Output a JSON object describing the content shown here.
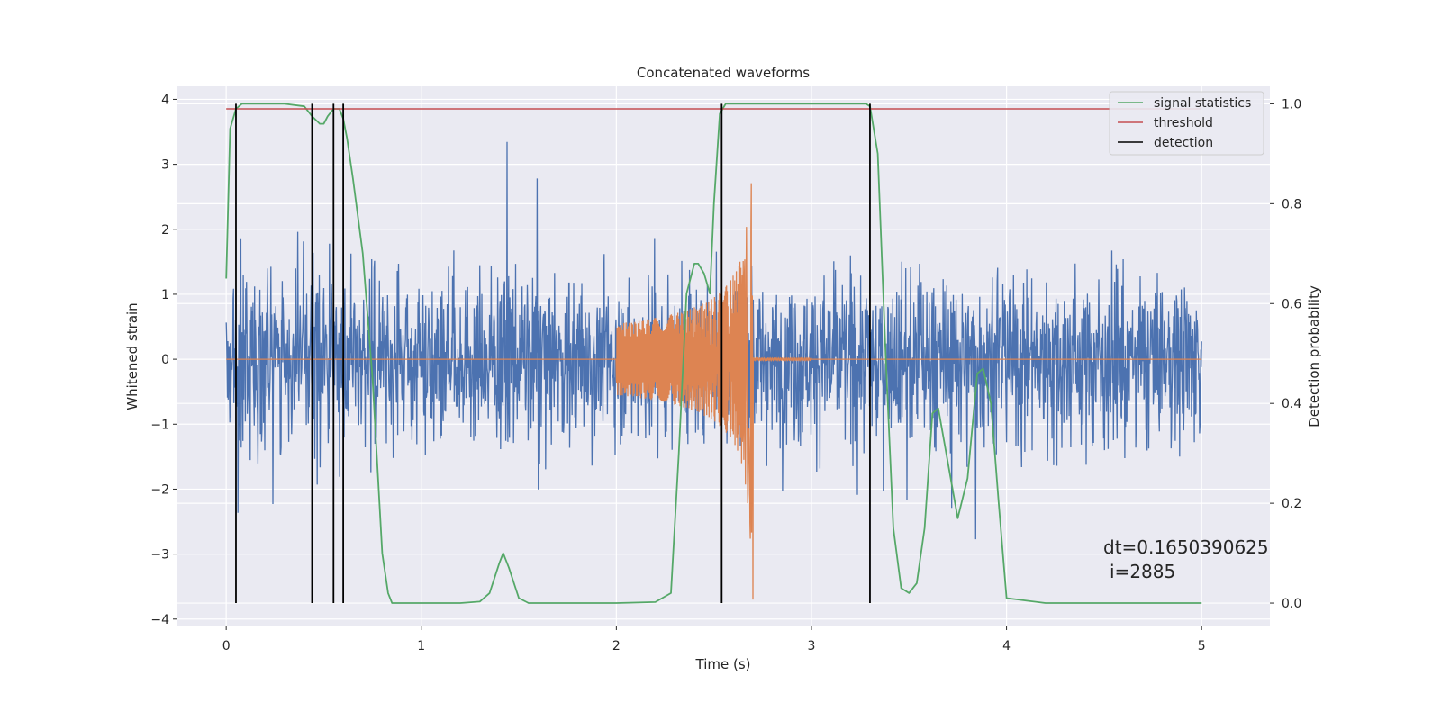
{
  "chart_data": {
    "type": "line",
    "title": "Concatenated waveforms",
    "xlabel": "Time (s)",
    "ylabel": "Whitened strain",
    "y2label": "Detection probability",
    "xlim": [
      -0.25,
      5.35
    ],
    "ylim": [
      -4.1,
      4.2
    ],
    "y2lim": [
      -0.045,
      1.035
    ],
    "xticks": [
      0,
      1,
      2,
      3,
      4,
      5
    ],
    "yticks": [
      -4,
      -3,
      -2,
      -1,
      0,
      1,
      2,
      3,
      4
    ],
    "y2ticks": [
      0.0,
      0.2,
      0.4,
      0.6,
      0.8,
      1.0
    ],
    "xtick_labels": [
      "0",
      "1",
      "2",
      "3",
      "4",
      "5"
    ],
    "ytick_labels": [
      "−4",
      "−3",
      "−2",
      "−1",
      "0",
      "1",
      "2",
      "3",
      "4"
    ],
    "y2tick_labels": [
      "0.0",
      "0.2",
      "0.4",
      "0.6",
      "0.8",
      "1.0"
    ],
    "grid": true,
    "legend_position": "top-right",
    "colors": {
      "strain": "#4c72b0",
      "waveform": "#dd8452",
      "signal_statistics": "#55a868",
      "threshold": "#c44e52",
      "detection": "#000000",
      "background": "#eaeaf2"
    },
    "series": [
      {
        "name": "signal statistics",
        "axis": "right",
        "x": [
          0.0,
          0.02,
          0.05,
          0.08,
          0.1,
          0.2,
          0.3,
          0.4,
          0.44,
          0.48,
          0.5,
          0.52,
          0.55,
          0.58,
          0.6,
          0.62,
          0.65,
          0.7,
          0.75,
          0.8,
          0.83,
          0.85,
          0.9,
          1.0,
          1.2,
          1.3,
          1.35,
          1.4,
          1.42,
          1.45,
          1.5,
          1.55,
          1.6,
          1.8,
          2.0,
          2.2,
          2.28,
          2.32,
          2.36,
          2.4,
          2.42,
          2.45,
          2.48,
          2.5,
          2.53,
          2.56,
          2.6,
          2.8,
          3.0,
          3.2,
          3.28,
          3.3,
          3.34,
          3.38,
          3.42,
          3.46,
          3.5,
          3.54,
          3.58,
          3.62,
          3.65,
          3.7,
          3.75,
          3.8,
          3.85,
          3.88,
          3.92,
          3.96,
          4.0,
          4.2,
          4.5,
          4.8,
          5.0
        ],
        "values": [
          0.65,
          0.95,
          0.99,
          1.0,
          1.0,
          1.0,
          1.0,
          0.995,
          0.975,
          0.96,
          0.96,
          0.975,
          0.99,
          0.99,
          0.97,
          0.93,
          0.85,
          0.7,
          0.45,
          0.1,
          0.02,
          0.0,
          0.0,
          0.0,
          0.0,
          0.003,
          0.02,
          0.08,
          0.1,
          0.07,
          0.01,
          0.0,
          0.0,
          0.0,
          0.0,
          0.002,
          0.02,
          0.3,
          0.62,
          0.68,
          0.68,
          0.66,
          0.62,
          0.8,
          0.98,
          1.0,
          1.0,
          1.0,
          1.0,
          1.0,
          1.0,
          0.995,
          0.9,
          0.5,
          0.15,
          0.03,
          0.02,
          0.04,
          0.15,
          0.38,
          0.39,
          0.28,
          0.17,
          0.25,
          0.46,
          0.47,
          0.4,
          0.2,
          0.01,
          0.0,
          0.0,
          0.0,
          0.0
        ]
      },
      {
        "name": "threshold",
        "axis": "right",
        "x": [
          0.0,
          5.0
        ],
        "values": [
          0.99,
          0.99
        ]
      },
      {
        "name": "detection",
        "axis": "right",
        "x": [
          0.05,
          0.44,
          0.55,
          0.6,
          2.54,
          3.3
        ],
        "range": [
          0.0,
          1.0
        ]
      },
      {
        "axis": "left",
        "description_free": true,
        "x_range": [
          0.0,
          5.0
        ],
        "amplitude_envelope": 3.9
      }
    ],
    "annotations": [
      "dt=0.1650390625",
      "i=2885"
    ]
  }
}
